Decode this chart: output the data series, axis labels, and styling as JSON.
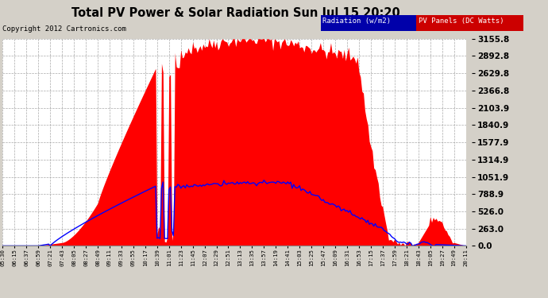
{
  "title": "Total PV Power & Solar Radiation Sun Jul 15 20:20",
  "copyright": "Copyright 2012 Cartronics.com",
  "legend_radiation": "Radiation (w/m2)",
  "legend_pv": "PV Panels (DC Watts)",
  "radiation_color": "#0000ff",
  "pv_color": "#ff0000",
  "radiation_legend_bg": "#0000cc",
  "pv_legend_bg": "#cc0000",
  "background_color": "#d4d0c8",
  "plot_bg_color": "#ffffff",
  "grid_color": "#aaaaaa",
  "ytick_labels": [
    "0.0",
    "263.0",
    "526.0",
    "788.9",
    "1051.9",
    "1314.9",
    "1577.9",
    "1840.9",
    "2103.9",
    "2366.8",
    "2629.8",
    "2892.8",
    "3155.8"
  ],
  "ytick_values": [
    0.0,
    263.0,
    526.0,
    788.9,
    1051.9,
    1314.9,
    1577.9,
    1840.9,
    2103.9,
    2366.8,
    2629.8,
    2892.8,
    3155.8
  ],
  "x_tick_labels": [
    "05:30",
    "06:15",
    "06:37",
    "06:59",
    "07:21",
    "07:43",
    "08:05",
    "08:27",
    "08:49",
    "09:11",
    "09:33",
    "09:55",
    "10:17",
    "10:39",
    "11:01",
    "11:23",
    "11:45",
    "12:07",
    "12:29",
    "12:51",
    "13:13",
    "13:35",
    "13:57",
    "14:19",
    "14:41",
    "15:03",
    "15:25",
    "15:47",
    "16:09",
    "16:31",
    "16:53",
    "17:15",
    "17:37",
    "17:59",
    "18:21",
    "18:43",
    "19:05",
    "19:27",
    "19:49",
    "20:11"
  ],
  "ymax": 3155.8,
  "ymin": 0.0
}
